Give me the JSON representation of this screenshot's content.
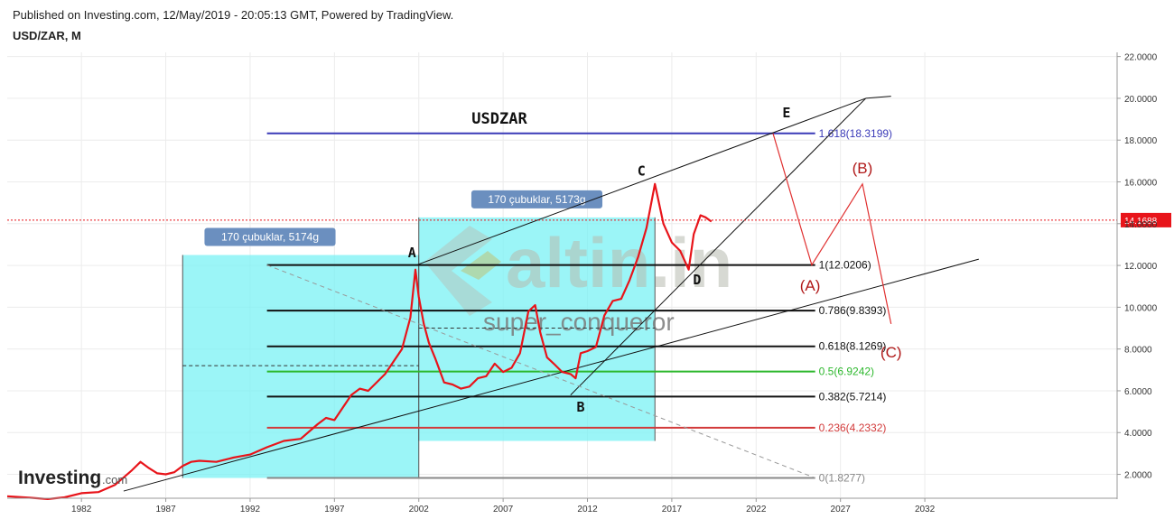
{
  "header": {
    "published": "Published on Investing.com, 12/May/2019 - 20:05:13 GMT, Powered by TradingView.",
    "symbol": "USD/ZAR, M"
  },
  "chart_data": {
    "type": "line",
    "title": "USDZAR",
    "x_ticks": [
      "1982",
      "1987",
      "1992",
      "1997",
      "2002",
      "2007",
      "2012",
      "2017",
      "2022",
      "2027",
      "2032"
    ],
    "y_ticks": [
      "22.0000",
      "20.0000",
      "18.0000",
      "16.0000",
      "14.0000",
      "12.0000",
      "10.0000",
      "8.0000",
      "6.0000",
      "4.0000",
      "2.0000"
    ],
    "ylim": [
      0.9,
      22.2
    ],
    "xlim": [
      1977.6,
      2043.4
    ],
    "grid": true,
    "last_price": "14.1688",
    "last_price_value": 14.1688,
    "series": [
      {
        "color": "#e8141a",
        "x": [
          1977.6,
          1979,
          1980,
          1981,
          1982,
          1983,
          1984,
          1985,
          1985.5,
          1986,
          1986.5,
          1987,
          1987.5,
          1988,
          1988.5,
          1989,
          1990,
          1991,
          1992,
          1993,
          1994,
          1995,
          1996,
          1996.5,
          1997,
          1998,
          1998.5,
          1999,
          2000,
          2000.5,
          2001,
          2001.5,
          2001.8,
          2002,
          2002.3,
          2002.6,
          2003,
          2003.5,
          2004,
          2004.5,
          2005,
          2005.5,
          2006,
          2006.5,
          2007,
          2007.5,
          2008,
          2008.5,
          2008.9,
          2009.2,
          2009.6,
          2010,
          2010.5,
          2011,
          2011.3,
          2011.6,
          2012,
          2012.5,
          2013,
          2013.5,
          2014,
          2014.5,
          2015,
          2015.5,
          2016,
          2016.5,
          2017,
          2017.5,
          2018,
          2018.3,
          2018.7,
          2019,
          2019.35
        ],
        "values": [
          0.95,
          0.88,
          0.82,
          0.9,
          1.1,
          1.15,
          1.5,
          2.2,
          2.6,
          2.3,
          2.05,
          2.0,
          2.1,
          2.4,
          2.6,
          2.65,
          2.6,
          2.8,
          2.95,
          3.3,
          3.6,
          3.7,
          4.4,
          4.7,
          4.6,
          5.8,
          6.1,
          6.0,
          6.8,
          7.4,
          8.0,
          9.5,
          11.8,
          10.5,
          9.2,
          8.3,
          7.5,
          6.4,
          6.3,
          6.1,
          6.2,
          6.6,
          6.7,
          7.3,
          6.9,
          7.1,
          7.8,
          9.8,
          10.1,
          8.8,
          7.6,
          7.3,
          6.9,
          6.8,
          6.6,
          7.8,
          7.9,
          8.1,
          9.6,
          10.3,
          10.4,
          11.3,
          12.4,
          13.8,
          15.9,
          14.0,
          13.1,
          12.7,
          11.8,
          13.5,
          14.4,
          14.3,
          14.1
        ]
      }
    ],
    "fib_levels": [
      {
        "label": "1.618(18.3199)",
        "value": 18.3199,
        "color": "#3a3ab8"
      },
      {
        "label": "1(12.0206)",
        "value": 12.0206,
        "color": "#111111"
      },
      {
        "label": "0.786(9.8393)",
        "value": 9.8393,
        "color": "#111111"
      },
      {
        "label": "0.618(8.1269)",
        "value": 8.1269,
        "color": "#111111"
      },
      {
        "label": "0.5(6.9242)",
        "value": 6.9242,
        "color": "#2db82d"
      },
      {
        "label": "0.382(5.7214)",
        "value": 5.7214,
        "color": "#111111"
      },
      {
        "label": "0.236(4.2332)",
        "value": 4.2332,
        "color": "#d23a3a"
      },
      {
        "label": "0(1.8277)",
        "value": 1.8277,
        "color": "#888888"
      }
    ],
    "fib_x_start": 1993,
    "fib_x_end": 2025.5,
    "range_boxes": [
      {
        "label": "170 çubuklar, 5174g",
        "x0": 1988,
        "x1": 2002.0,
        "y0": 1.8277,
        "y1": 12.5
      },
      {
        "label": "170 çubuklar, 5173g",
        "x0": 2002.0,
        "x1": 2016.0,
        "y0": 3.6,
        "y1": 14.3
      }
    ],
    "points": [
      {
        "label": "A",
        "x": 2001.6,
        "y": 12.4
      },
      {
        "label": "B",
        "x": 2011.6,
        "y": 5.0
      },
      {
        "label": "C",
        "x": 2015.2,
        "y": 16.3
      },
      {
        "label": "D",
        "x": 2018.5,
        "y": 11.1
      },
      {
        "label": "E",
        "x": 2023.8,
        "y": 19.1
      }
    ],
    "waves": [
      {
        "label": "(A)",
        "x": 2025.2,
        "y": 10.8
      },
      {
        "label": "(B)",
        "x": 2028.3,
        "y": 16.4
      },
      {
        "label": "(C)",
        "x": 2030.0,
        "y": 7.6
      }
    ],
    "trendlines": [
      {
        "x": [
          2001.8,
          2028.5
        ],
        "y": [
          12.0,
          20.0
        ],
        "color": "#111111",
        "width": 1
      },
      {
        "x": [
          2011.0,
          2028.5
        ],
        "y": [
          5.8,
          20.0
        ],
        "color": "#111111",
        "width": 1
      },
      {
        "x": [
          2028.5,
          2030.0
        ],
        "y": [
          20.0,
          20.1
        ],
        "color": "#111111",
        "width": 1
      },
      {
        "x": [
          1984.5,
          2035.2
        ],
        "y": [
          1.2,
          12.3
        ],
        "color": "#111111",
        "width": 1
      },
      {
        "x": [
          1993.0,
          2025.5
        ],
        "y": [
          12.0206,
          1.8277
        ],
        "color": "#999999",
        "width": 1,
        "dash": "5,4"
      },
      {
        "x": [
          1988.0,
          2002.0
        ],
        "y": [
          7.2,
          7.2
        ],
        "color": "#333333",
        "width": 1,
        "dash": "4,3"
      },
      {
        "x": [
          2002.0,
          2016.0
        ],
        "y": [
          9.0,
          9.0
        ],
        "color": "#333333",
        "width": 1,
        "dash": "4,3"
      }
    ],
    "projection": {
      "x": [
        2023.0,
        2025.3,
        2028.3,
        2030.0
      ],
      "y": [
        18.32,
        12.02,
        15.9,
        9.2
      ],
      "color": "#e03030"
    },
    "watermark": {
      "brand": "altin.in",
      "user": "super_conqueror"
    },
    "logo": "Investing.com"
  }
}
